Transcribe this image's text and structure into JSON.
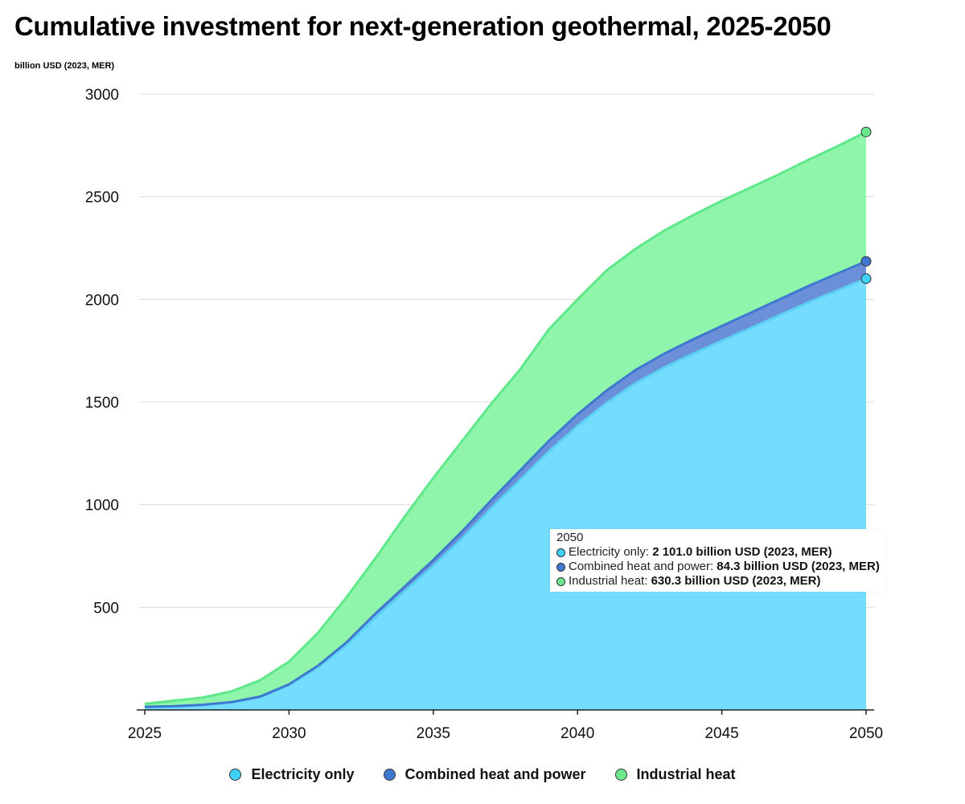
{
  "chart_data": {
    "type": "area",
    "stacked": true,
    "title": "Cumulative investment for next-generation geothermal, 2025-2050",
    "ylabel": "billion USD (2023, MER)",
    "xlabel": "",
    "ylim": [
      0,
      3000
    ],
    "xlim": [
      2025,
      2050
    ],
    "yticks": [
      500,
      1000,
      1500,
      2000,
      2500,
      3000
    ],
    "xticks": [
      2025,
      2030,
      2035,
      2040,
      2045,
      2050
    ],
    "grid": true,
    "legend_position": "bottom",
    "x": [
      2025,
      2026,
      2027,
      2028,
      2029,
      2030,
      2031,
      2032,
      2033,
      2034,
      2035,
      2036,
      2037,
      2038,
      2039,
      2040,
      2041,
      2042,
      2043,
      2044,
      2045,
      2046,
      2047,
      2048,
      2049,
      2050
    ],
    "series": [
      {
        "name": "Electricity only",
        "color": "#74dcfd",
        "line": "#5bd0f5",
        "values": [
          14,
          17,
          24,
          36,
          62,
          120,
          207,
          317,
          452,
          577,
          702,
          836,
          981,
          1120,
          1259,
          1384,
          1495,
          1591,
          1668,
          1735,
          1798,
          1860,
          1923,
          1985,
          2043,
          2101.0
        ]
      },
      {
        "name": "Combined heat and power",
        "color": "#6b8fd8",
        "line": "#3f78d0",
        "values": [
          1,
          1,
          1,
          2,
          3,
          5,
          8,
          13,
          18,
          23,
          28,
          34,
          39,
          45,
          51,
          56,
          60,
          64,
          67,
          70,
          72,
          75,
          77,
          80,
          82,
          84.3
        ]
      },
      {
        "name": "Industrial heat",
        "color": "#8ef5aa",
        "line": "#5ee88a",
        "values": [
          15,
          27,
          35,
          52,
          80,
          110,
          160,
          220,
          270,
          340,
          400,
          440,
          470,
          492,
          543,
          560,
          585,
          590,
          600,
          605,
          610,
          610,
          610,
          615,
          620,
          630.3
        ]
      }
    ],
    "tooltip": {
      "year": "2050",
      "rows": [
        {
          "label": "Electricity only: ",
          "value": "2 101.0 billion USD (2023, MER)"
        },
        {
          "label": "Combined heat and power: ",
          "value": "84.3 billion USD (2023, MER)"
        },
        {
          "label": "Industrial heat: ",
          "value": "630.3 billion USD (2023, MER)"
        }
      ]
    }
  }
}
